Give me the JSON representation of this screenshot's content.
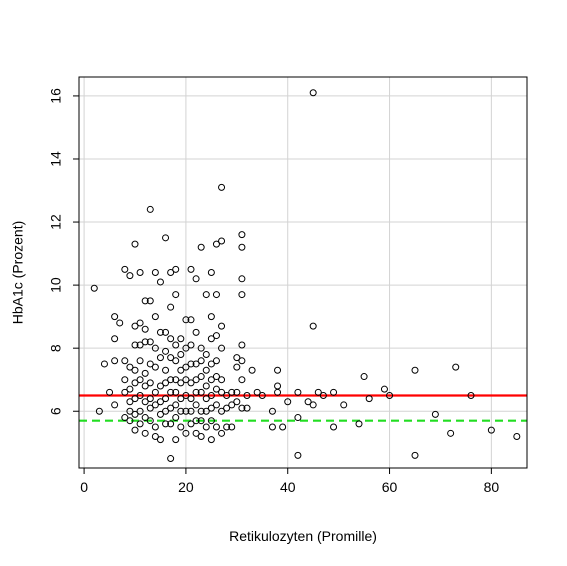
{
  "chart_data": {
    "type": "scatter",
    "title": "",
    "xlabel": "Retikulozyten (Promille)",
    "ylabel": "HbA1c (Prozent)",
    "xlim": [
      -1,
      87
    ],
    "ylim": [
      4.2,
      16.6
    ],
    "xticks": [
      0,
      20,
      40,
      60,
      80
    ],
    "yticks": [
      6,
      8,
      10,
      12,
      14,
      16
    ],
    "grid": true,
    "colors": {
      "points": "#000000",
      "grid": "#d3d3d3",
      "hline_solid": "#ff0000",
      "hline_dashed": "#00cc00"
    },
    "reference_lines": [
      {
        "y": 6.5,
        "style": "solid",
        "color": "#ff0000"
      },
      {
        "y": 5.7,
        "style": "dashed",
        "color": "#22dd22"
      }
    ],
    "points": [
      [
        2,
        9.9
      ],
      [
        3,
        6.0
      ],
      [
        4,
        7.5
      ],
      [
        5,
        6.6
      ],
      [
        6,
        9.0
      ],
      [
        6,
        8.3
      ],
      [
        6,
        7.6
      ],
      [
        6,
        6.2
      ],
      [
        7,
        8.8
      ],
      [
        8,
        10.5
      ],
      [
        8,
        7.6
      ],
      [
        8,
        7.0
      ],
      [
        8,
        6.6
      ],
      [
        8,
        5.8
      ],
      [
        9,
        10.3
      ],
      [
        9,
        7.4
      ],
      [
        9,
        6.7
      ],
      [
        9,
        6.3
      ],
      [
        9,
        6.0
      ],
      [
        9,
        5.7
      ],
      [
        10,
        11.3
      ],
      [
        10,
        8.7
      ],
      [
        10,
        8.1
      ],
      [
        10,
        7.3
      ],
      [
        10,
        6.9
      ],
      [
        10,
        6.4
      ],
      [
        10,
        5.9
      ],
      [
        10,
        5.4
      ],
      [
        11,
        10.4
      ],
      [
        11,
        8.8
      ],
      [
        11,
        8.1
      ],
      [
        11,
        7.6
      ],
      [
        11,
        7.0
      ],
      [
        11,
        6.5
      ],
      [
        11,
        6.0
      ],
      [
        11,
        5.6
      ],
      [
        12,
        9.5
      ],
      [
        12,
        8.6
      ],
      [
        12,
        8.2
      ],
      [
        12,
        7.2
      ],
      [
        12,
        6.8
      ],
      [
        12,
        6.3
      ],
      [
        12,
        5.8
      ],
      [
        12,
        5.3
      ],
      [
        13,
        12.4
      ],
      [
        13,
        9.5
      ],
      [
        13,
        8.2
      ],
      [
        13,
        7.5
      ],
      [
        13,
        6.9
      ],
      [
        13,
        6.4
      ],
      [
        13,
        6.1
      ],
      [
        13,
        5.7
      ],
      [
        14,
        10.4
      ],
      [
        14,
        9.0
      ],
      [
        14,
        8.0
      ],
      [
        14,
        7.4
      ],
      [
        14,
        6.6
      ],
      [
        14,
        6.2
      ],
      [
        14,
        5.5
      ],
      [
        14,
        5.2
      ],
      [
        15,
        10.1
      ],
      [
        15,
        8.5
      ],
      [
        15,
        7.7
      ],
      [
        15,
        6.8
      ],
      [
        15,
        6.3
      ],
      [
        15,
        5.9
      ],
      [
        15,
        5.1
      ],
      [
        16,
        11.5
      ],
      [
        16,
        8.5
      ],
      [
        16,
        7.9
      ],
      [
        16,
        7.3
      ],
      [
        16,
        6.9
      ],
      [
        16,
        6.4
      ],
      [
        16,
        6.0
      ],
      [
        16,
        5.6
      ],
      [
        17,
        10.4
      ],
      [
        17,
        9.3
      ],
      [
        17,
        8.3
      ],
      [
        17,
        7.7
      ],
      [
        17,
        7.0
      ],
      [
        17,
        6.6
      ],
      [
        17,
        6.1
      ],
      [
        17,
        5.6
      ],
      [
        17,
        4.5
      ],
      [
        18,
        10.5
      ],
      [
        18,
        9.7
      ],
      [
        18,
        8.1
      ],
      [
        18,
        7.6
      ],
      [
        18,
        7.0
      ],
      [
        18,
        6.6
      ],
      [
        18,
        6.2
      ],
      [
        18,
        5.8
      ],
      [
        18,
        5.1
      ],
      [
        19,
        8.3
      ],
      [
        19,
        7.8
      ],
      [
        19,
        7.3
      ],
      [
        19,
        6.9
      ],
      [
        19,
        6.4
      ],
      [
        19,
        6.0
      ],
      [
        19,
        5.5
      ],
      [
        20,
        8.9
      ],
      [
        20,
        8.0
      ],
      [
        20,
        7.4
      ],
      [
        20,
        7.0
      ],
      [
        20,
        6.5
      ],
      [
        20,
        6.0
      ],
      [
        20,
        5.3
      ],
      [
        21,
        10.5
      ],
      [
        21,
        8.9
      ],
      [
        21,
        8.1
      ],
      [
        21,
        7.5
      ],
      [
        21,
        6.9
      ],
      [
        21,
        6.4
      ],
      [
        21,
        6.0
      ],
      [
        21,
        5.6
      ],
      [
        22,
        10.2
      ],
      [
        22,
        8.5
      ],
      [
        22,
        7.5
      ],
      [
        22,
        7.0
      ],
      [
        22,
        6.6
      ],
      [
        22,
        6.2
      ],
      [
        22,
        5.7
      ],
      [
        22,
        5.3
      ],
      [
        23,
        11.2
      ],
      [
        23,
        8.0
      ],
      [
        23,
        7.6
      ],
      [
        23,
        7.1
      ],
      [
        23,
        6.6
      ],
      [
        23,
        6.0
      ],
      [
        23,
        5.7
      ],
      [
        23,
        5.2
      ],
      [
        24,
        9.7
      ],
      [
        24,
        7.8
      ],
      [
        24,
        7.3
      ],
      [
        24,
        6.8
      ],
      [
        24,
        6.4
      ],
      [
        24,
        6.0
      ],
      [
        24,
        5.5
      ],
      [
        25,
        10.4
      ],
      [
        25,
        9.0
      ],
      [
        25,
        8.3
      ],
      [
        25,
        7.5
      ],
      [
        25,
        7.0
      ],
      [
        25,
        6.5
      ],
      [
        25,
        6.1
      ],
      [
        25,
        5.7
      ],
      [
        25,
        5.1
      ],
      [
        26,
        11.3
      ],
      [
        26,
        9.7
      ],
      [
        26,
        8.4
      ],
      [
        26,
        7.6
      ],
      [
        26,
        7.1
      ],
      [
        26,
        6.7
      ],
      [
        26,
        6.2
      ],
      [
        26,
        5.5
      ],
      [
        27,
        13.1
      ],
      [
        27,
        11.4
      ],
      [
        27,
        8.7
      ],
      [
        27,
        8.0
      ],
      [
        27,
        7.0
      ],
      [
        27,
        6.6
      ],
      [
        27,
        6.0
      ],
      [
        27,
        5.3
      ],
      [
        28,
        6.5
      ],
      [
        28,
        6.1
      ],
      [
        28,
        5.5
      ],
      [
        29,
        6.6
      ],
      [
        29,
        6.2
      ],
      [
        29,
        5.5
      ],
      [
        30,
        7.7
      ],
      [
        30,
        7.4
      ],
      [
        30,
        6.6
      ],
      [
        30,
        6.3
      ],
      [
        31,
        11.6
      ],
      [
        31,
        11.2
      ],
      [
        31,
        10.2
      ],
      [
        31,
        9.7
      ],
      [
        31,
        8.1
      ],
      [
        31,
        7.6
      ],
      [
        31,
        7.0
      ],
      [
        31,
        6.1
      ],
      [
        32,
        6.5
      ],
      [
        32,
        6.1
      ],
      [
        33,
        7.3
      ],
      [
        34,
        6.6
      ],
      [
        35,
        6.5
      ],
      [
        37,
        6.0
      ],
      [
        37,
        5.5
      ],
      [
        38,
        7.3
      ],
      [
        38,
        6.8
      ],
      [
        38,
        6.6
      ],
      [
        39,
        5.5
      ],
      [
        40,
        6.3
      ],
      [
        42,
        6.6
      ],
      [
        42,
        5.8
      ],
      [
        42,
        4.6
      ],
      [
        44,
        6.3
      ],
      [
        45,
        16.1
      ],
      [
        45,
        8.7
      ],
      [
        45,
        6.2
      ],
      [
        46,
        6.6
      ],
      [
        47,
        6.5
      ],
      [
        49,
        6.6
      ],
      [
        49,
        5.5
      ],
      [
        51,
        6.2
      ],
      [
        54,
        5.6
      ],
      [
        55,
        7.1
      ],
      [
        56,
        6.4
      ],
      [
        59,
        6.7
      ],
      [
        60,
        6.5
      ],
      [
        65,
        7.3
      ],
      [
        65,
        4.6
      ],
      [
        69,
        5.9
      ],
      [
        72,
        5.3
      ],
      [
        73,
        7.4
      ],
      [
        76,
        6.5
      ],
      [
        80,
        5.4
      ],
      [
        85,
        5.2
      ]
    ]
  }
}
